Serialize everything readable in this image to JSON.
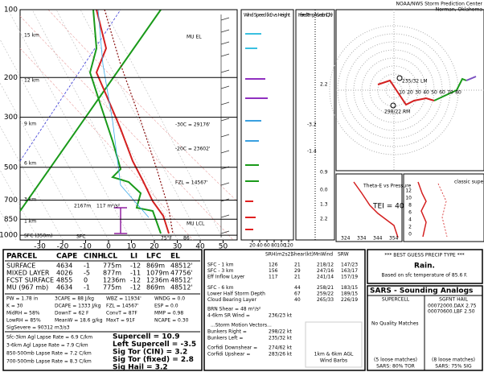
{
  "header": {
    "org": "NOAA/NWS Storm Prediction Center",
    "location": "Norman, Oklahoma"
  },
  "skewt": {
    "pressure_labels": [
      100,
      200,
      300,
      500,
      700,
      850,
      1000
    ],
    "temp_labels": [
      -30,
      -20,
      -10,
      0,
      10,
      20,
      30,
      40,
      50
    ],
    "height_labels": [
      "15 km",
      "12 km",
      "9 km",
      "6 km",
      "3 km",
      "1 km",
      "SFC (350m)"
    ],
    "annotations": {
      "mu_el": "MU EL",
      "t30": "-30C = 29176'",
      "t20": "-20C = 23602'",
      "fzl": "FZL = 14567'",
      "eff_depth": "2167m",
      "esrh": "117 m²/s²",
      "sfc": "SFC",
      "mu_lcl": "MU LCL",
      "sfc_td": "75°F",
      "sfc_t": "86"
    }
  },
  "wind_panel": {
    "title": "Wind Speed (kt) vs Height",
    "ticks": [
      20,
      40,
      60,
      80,
      100,
      120
    ]
  },
  "temp_advection": {
    "title": "Inferred Temp Advection (C / hr)",
    "values": [
      "2.2",
      "-3.2",
      "-1.4",
      "0.9",
      "0.0",
      "1.3",
      "2.2"
    ]
  },
  "hodograph": {
    "rings": [
      10,
      20,
      30,
      40,
      50,
      60,
      70,
      80
    ],
    "left_mover": "235/32 LM",
    "right_mover": "298/22 RM"
  },
  "theta_e": {
    "title": "Theta-E vs Pressure",
    "tei": "TEI = 40",
    "axis": [
      "324",
      "334",
      "344",
      "354"
    ]
  },
  "srw": {
    "title": "classic supercell",
    "labels": [
      "12",
      "10",
      "8",
      "6",
      "4",
      "2",
      "0"
    ]
  },
  "thermo": {
    "columns": [
      "PARCEL",
      "CAPE",
      "CINH",
      "LCL",
      "LI",
      "LFC",
      "EL"
    ],
    "rows": [
      [
        "SURFACE",
        "4634",
        "-1",
        "775m",
        "-12",
        "869m",
        "48512'"
      ],
      [
        "MIXED LAYER",
        "4026",
        "-5",
        "877m",
        "-11",
        "1079m",
        "47756'"
      ],
      [
        "FCST SURFACE",
        "4855",
        "0",
        "1236m",
        "-12",
        "1236m",
        "48512'"
      ],
      [
        "MU (967 mb)",
        "4634",
        "-1",
        "775m",
        "-12",
        "869m",
        "48512'"
      ]
    ],
    "indices": [
      [
        "PW = 1.78 in",
        "3CAPE = 88 J/kg",
        "WBZ = 11934'",
        "WNDG = 0.0"
      ],
      [
        "K = 30",
        "DCAPE = 1333 J/kg",
        "FZL = 14567'",
        "ESP = 0.0"
      ],
      [
        "MidRH = 58%",
        "DownT = 62 F",
        "ConvT = 87F",
        "MMP = 0.98"
      ],
      [
        "LowRH = 85%",
        "MeanW = 18.6 g/kg",
        "MaxT = 91F",
        "NCAPE = 0.30"
      ]
    ],
    "sig_severe": "SigSevere = 90312 m3/s3",
    "lapse_rates": [
      "Sfc-3km Agl Lapse Rate = 6.9 C/km",
      "3-6km Agl Lapse Rate = 7.9 C/km",
      "850-500mb Lapse Rate = 7.2 C/km",
      "700-500mb Lapse Rate = 8.3 C/km"
    ],
    "composites": [
      {
        "text": "Supercell = 10.9",
        "color": "#e8a000"
      },
      {
        "text": "Left Supercell = -3.5",
        "color": "#1a9fd8"
      },
      {
        "text": "Sig Tor (CIN) = 3.2",
        "color": "#e8a000"
      },
      {
        "text": "Sig Tor (fixed) = 2.8",
        "color": "#e8a000"
      },
      {
        "text": "Sig Hail = 3.2",
        "color": "#e02020"
      }
    ]
  },
  "kinematic": {
    "columns": [
      "SRH(m2s2)",
      "Shear(kt)",
      "MnWind",
      "SRW"
    ],
    "rows": [
      [
        "SFC - 1 km",
        "126",
        "21",
        "218/12",
        "147/23"
      ],
      [
        "SFC - 3 km",
        "156",
        "29",
        "247/16",
        "163/17"
      ],
      [
        "Eff Inflow Layer",
        "117",
        "21",
        "241/14",
        "157/19"
      ],
      [
        "SFC - 6 km",
        "",
        "44",
        "258/21",
        "183/15"
      ],
      [
        "Lower Half Storm Depth",
        "",
        "67",
        "259/22",
        "189/15"
      ],
      [
        "Cloud Bearing Layer",
        "",
        "40",
        "265/33",
        "226/19"
      ]
    ],
    "brn": "BRN Shear = 48 m²/s²",
    "sr_wind": "4-6km SR Wind =",
    "sr_wind_value": "236/23 kt",
    "motion_title": "...Storm Motion Vectors...",
    "motions": [
      [
        "Bunkers Right =",
        "298/22 kt"
      ],
      [
        "Bunkers Left =",
        "235/32 kt"
      ],
      [
        "Corfidi Downshear =",
        "274/62 kt"
      ],
      [
        "Corfidi Upshear =",
        "283/26 kt"
      ]
    ],
    "barb_legend": [
      "1km & 6km AGL",
      "Wind Barbs"
    ]
  },
  "precip": {
    "title": "*** BEST GUESS PRECIP TYPE ***",
    "type": "Rain.",
    "basis": "Based on sfc temperature of 85.6 F."
  },
  "sars": {
    "title": "SARS - Sounding Analogs",
    "supercell": {
      "header": "SUPERCELL",
      "note": "No Quality Matches",
      "loose": "(5 loose matches)",
      "result": "SARS: 80% TOR"
    },
    "hail": {
      "header": "SGFNT HAIL",
      "matches": [
        "00072000.DAX 2.75",
        "00070600.LBF 2.50"
      ],
      "loose": "(8 loose matches)",
      "result": "SARS: 75% SIG"
    }
  }
}
